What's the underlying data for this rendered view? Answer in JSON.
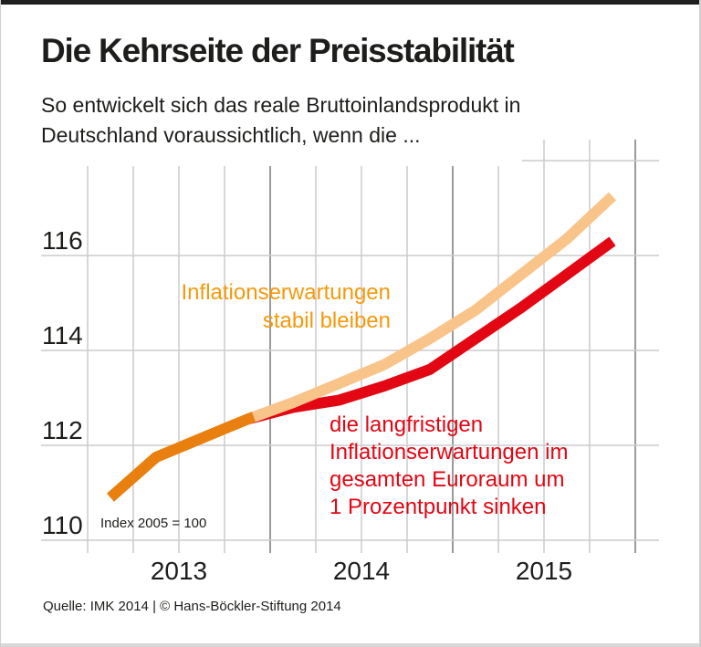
{
  "header": {
    "title": "Die Kehrseite der Preisstabilität",
    "subtitle_lines": [
      "So entwickelt sich das reale Bruttoinlandsprodukt in",
      "Deutschland voraussichtlich, wenn die ..."
    ]
  },
  "chart_data": {
    "type": "line",
    "x_categories": [
      "2013 Q1",
      "2013 Q2",
      "2013 Q3",
      "2013 Q4",
      "2014 Q1",
      "2014 Q2",
      "2014 Q3",
      "2014 Q4",
      "2015 Q1",
      "2015 Q2",
      "2015 Q3",
      "2015 Q4"
    ],
    "x_year_labels": [
      "2013",
      "2014",
      "2015"
    ],
    "y_ticks": [
      "116",
      "114",
      "112",
      "110"
    ],
    "y_gridline_values": [
      118,
      116,
      114,
      112,
      110
    ],
    "ylim": [
      109.8,
      118.4
    ],
    "grid": true,
    "unit_note": "Index 2005 = 100",
    "legend_position": "inline-annotations",
    "series": [
      {
        "name": "Inflationserwartungen stabil bleiben",
        "color": "#f8c489",
        "history_color": "#e87f0f",
        "history_end_index": 3,
        "values": [
          110.9,
          111.75,
          112.15,
          112.55,
          112.9,
          113.3,
          113.7,
          114.25,
          114.85,
          115.6,
          116.35,
          117.25
        ]
      },
      {
        "name": "die langfristigen Inflationserwartungen im gesamten Euroraum um 1 Prozentpunkt sinken",
        "color": "#e30613",
        "values": [
          null,
          null,
          null,
          112.55,
          112.8,
          112.95,
          113.25,
          113.6,
          114.25,
          114.9,
          115.6,
          116.3
        ]
      }
    ],
    "colors": {
      "history_line": "#e87f0f",
      "stable_line": "#f8c489",
      "sink_line": "#e30613",
      "stable_label": "#f5990b",
      "sink_label": "#e30613",
      "grid_light": "#cccccc",
      "grid_dark": "#9a9a9a"
    }
  },
  "annotations": {
    "stable": {
      "color": "#f5990b",
      "lines": [
        "Inflationserwartungen",
        "stabil bleiben"
      ]
    },
    "sink": {
      "color": "#e30613",
      "lines": [
        "die langfristigen",
        "Inflationserwartungen im",
        "gesamten Euroraum um",
        "1 Prozentpunkt sinken"
      ]
    }
  },
  "footer": {
    "source": "Quelle: IMK 2014 | © Hans-Böckler-Stiftung 2014"
  }
}
